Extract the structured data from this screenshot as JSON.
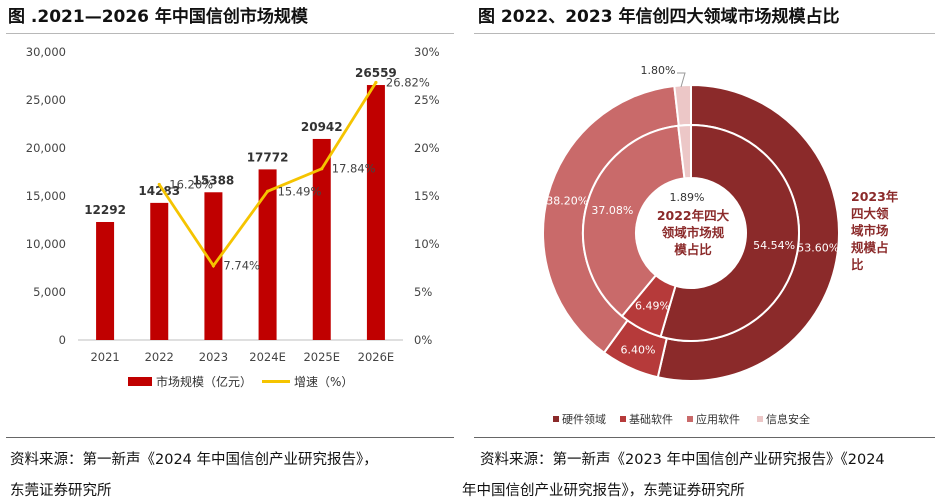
{
  "left_panel": {
    "title": "图  .2021—2026 年中国信创市场规模",
    "source_line1": "资料来源：第一新声《2024 年中国信创产业研究报告》，",
    "source_line2": "东莞证券研究所"
  },
  "right_panel": {
    "title": "图    2022、2023 年信创四大领域市场规模占比",
    "source_line1": "资料来源：第一新声《2023 年中国信创产业研究报告》《2024",
    "source_line2": "年中国信创产业研究报告》，东莞证券研究所"
  },
  "colors": {
    "bar": "#c00000",
    "line": "#f5c400",
    "hardware": "#8b2a2a",
    "base_software": "#b63a3a",
    "app_software": "#c96a6a",
    "security": "#ecc7c7"
  },
  "chart_data": [
    {
      "type": "bar",
      "categories": [
        "2021",
        "2022",
        "2023",
        "2024E",
        "2025E",
        "2026E"
      ],
      "series": [
        {
          "name": "市场规模（亿元）",
          "axis": "left",
          "chart_type": "bar",
          "values": [
            12292,
            14283,
            15388,
            17772,
            20942,
            26559
          ],
          "labels": [
            "12292",
            "14283",
            "15388",
            "17772",
            "20942",
            "26559"
          ]
        },
        {
          "name": "增速（%）",
          "axis": "right",
          "chart_type": "line",
          "values": [
            null,
            16.2,
            7.74,
            15.49,
            17.84,
            26.82
          ],
          "labels": [
            "",
            "16.20%",
            "7.74%",
            "15.49%",
            "17.84%",
            "26.82%"
          ]
        }
      ],
      "y_left": {
        "ticks": [
          "0",
          "5,000",
          "10,000",
          "15,000",
          "20,000",
          "25,000",
          "30,000"
        ],
        "ylim": [
          0,
          30000
        ]
      },
      "y_right": {
        "ticks": [
          "0%",
          "5%",
          "10%",
          "15%",
          "20%",
          "25%",
          "30%"
        ],
        "ylim": [
          0,
          30
        ]
      },
      "legend_position": "bottom",
      "grid": false
    },
    {
      "type": "pie",
      "subtype": "double-donut",
      "categories": [
        "硬件领域",
        "基础软件",
        "应用软件",
        "信息安全"
      ],
      "inner_label": "2022年四大领域市场规模占比",
      "outer_label": "2023年四大领域市场规模占比",
      "inner_label_lines": [
        "2022年四大",
        "领域市场规",
        "模占比"
      ],
      "outer_label_lines": [
        "2023年",
        "四大领",
        "域市场",
        "规模占",
        "比"
      ],
      "series": [
        {
          "name": "2022",
          "ring": "inner",
          "values": [
            54.54,
            6.49,
            37.08,
            1.89
          ],
          "labels": [
            "54.54%",
            "6.49%",
            "37.08%",
            "1.89%"
          ]
        },
        {
          "name": "2023",
          "ring": "outer",
          "values": [
            53.6,
            6.4,
            38.2,
            1.8
          ],
          "labels": [
            "53.60%",
            "6.40%",
            "38.20%",
            "1.80%"
          ]
        }
      ],
      "legend_position": "bottom"
    }
  ]
}
